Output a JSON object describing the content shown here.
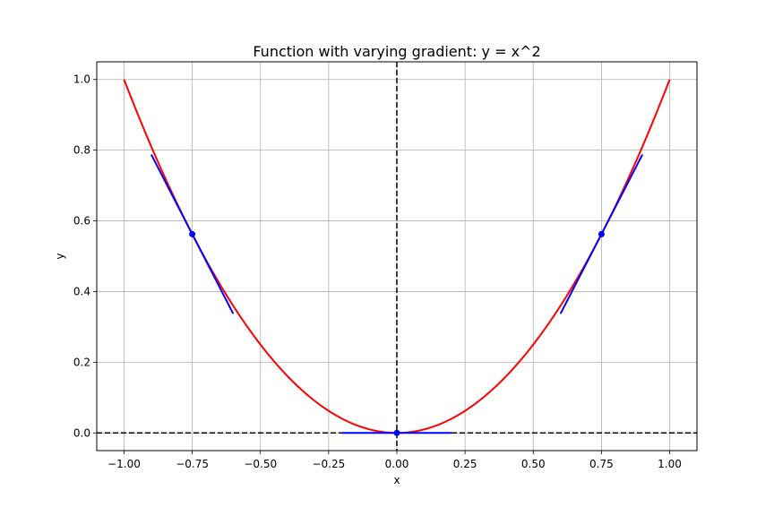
{
  "chart_data": {
    "type": "line",
    "title": "Function with varying gradient: y = x^2",
    "xlabel": "x",
    "ylabel": "y",
    "xlim": [
      -1.1,
      1.1
    ],
    "ylim": [
      -0.05,
      1.05
    ],
    "grid": true,
    "x_ticks": [
      -1.0,
      -0.75,
      -0.5,
      -0.25,
      0.0,
      0.25,
      0.5,
      0.75,
      1.0
    ],
    "x_tick_labels": [
      "−1.00",
      "−0.75",
      "−0.50",
      "−0.25",
      "0.00",
      "0.25",
      "0.50",
      "0.75",
      "1.00"
    ],
    "y_ticks": [
      0.0,
      0.2,
      0.4,
      0.6,
      0.8,
      1.0
    ],
    "y_tick_labels": [
      "0.0",
      "0.2",
      "0.4",
      "0.6",
      "0.8",
      "1.0"
    ],
    "curve": {
      "function": "x^2",
      "x_range": [
        -1.0,
        1.0
      ],
      "color": "#ff0000"
    },
    "tangents": [
      {
        "x0": -0.75,
        "y0": 0.5625,
        "slope": -1.5,
        "x_range": [
          -0.9,
          -0.6
        ]
      },
      {
        "x0": 0.0,
        "y0": 0.0,
        "slope": 0.0,
        "x_range": [
          -0.2,
          0.2
        ]
      },
      {
        "x0": 0.75,
        "y0": 0.5625,
        "slope": 1.5,
        "x_range": [
          0.6,
          0.9
        ]
      }
    ],
    "tangent_color": "#0000ff",
    "reference_lines": {
      "y": 0,
      "x": 0,
      "color": "#000000",
      "style": "dashed"
    }
  }
}
